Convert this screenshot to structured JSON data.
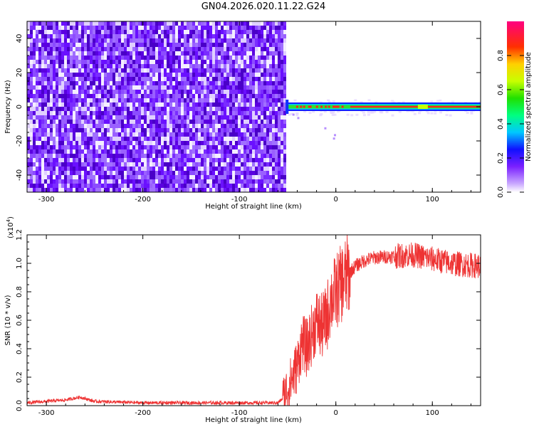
{
  "title": "GN04.2026.020.11.22.G24",
  "colors": {
    "spectrogram_noise": "#7a2cff",
    "ridge": "#ff2020",
    "snr_line": "#ee3333"
  },
  "chart_data": [
    {
      "type": "heatmap",
      "xlabel": "Height of straight line (km)",
      "ylabel": "Frequency (Hz)",
      "xlim": [
        -320,
        150
      ],
      "ylim": [
        -50,
        50
      ],
      "xticks": [
        -300,
        -200,
        -100,
        0,
        100
      ],
      "yticks": [
        -40,
        -20,
        0,
        20,
        40
      ],
      "noise_region_x": [
        -320,
        -52
      ],
      "signal_region_x": [
        -52,
        150
      ],
      "signal_frequency_hz": 0,
      "colorbar": {
        "label": "Normalized spectral amplitude",
        "range": [
          0.0,
          1.0
        ],
        "ticks": [
          0.0,
          0.2,
          0.4,
          0.6,
          0.8
        ]
      }
    },
    {
      "type": "line",
      "xlabel": "Height of straight line (km)",
      "ylabel": "SNR (10 * v/v)",
      "y_multiplier": "(x10",
      "y_exponent": "4",
      "xlim": [
        -320,
        150
      ],
      "ylim": [
        0.0,
        1.2
      ],
      "xticks": [
        -300,
        -200,
        -100,
        0,
        100
      ],
      "yticks": [
        "0.0",
        "0.2",
        "0.4",
        "0.6",
        "0.8",
        "1.0",
        "1.2"
      ],
      "series": [
        {
          "x": [
            -320,
            -300,
            -280,
            -265,
            -250,
            -200,
            -150,
            -100,
            -70,
            -60,
            -55,
            -50,
            -45,
            -40,
            -35,
            -30,
            -25,
            -20,
            -15,
            -10,
            -5,
            0,
            10,
            20,
            30,
            40,
            60,
            80,
            100,
            120,
            150
          ],
          "y": [
            0.02,
            0.03,
            0.04,
            0.06,
            0.03,
            0.02,
            0.02,
            0.02,
            0.02,
            0.02,
            0.05,
            0.12,
            0.2,
            0.28,
            0.45,
            0.4,
            0.5,
            0.6,
            0.55,
            0.6,
            0.75,
            0.8,
            0.9,
            0.98,
            1.02,
            1.04,
            1.05,
            1.06,
            1.03,
            1.0,
            0.98
          ]
        }
      ]
    }
  ]
}
